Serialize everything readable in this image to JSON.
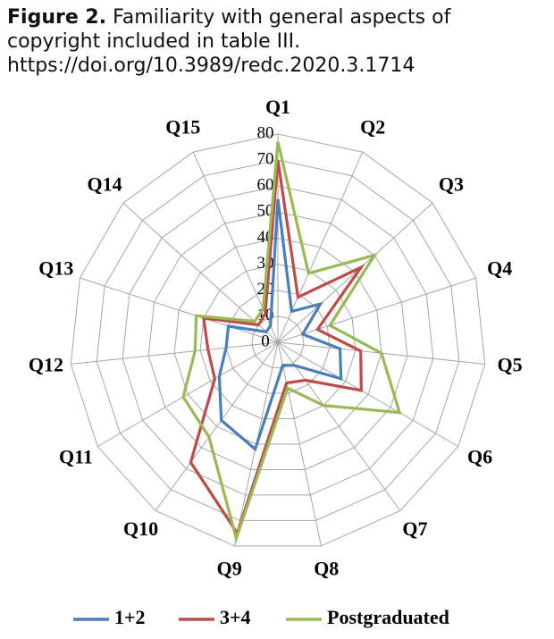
{
  "chart_data": {
    "type": "radar",
    "figure_label": "Figure 2.",
    "title": "Familiarity with general aspects of copyright included in table III.",
    "doi": "https://doi.org/10.3989/redc.2020.3.1714",
    "categories": [
      "Q1",
      "Q2",
      "Q3",
      "Q4",
      "Q5",
      "Q6",
      "Q7",
      "Q8",
      "Q9",
      "Q10",
      "Q11",
      "Q12",
      "Q13",
      "Q14",
      "Q15"
    ],
    "rlim": [
      0,
      80
    ],
    "rticks": [
      0,
      10,
      20,
      30,
      40,
      50,
      60,
      70,
      80
    ],
    "grid": true,
    "legend": "bottom",
    "series": [
      {
        "name": "1+2",
        "color": "#4a7ebb",
        "values": [
          55,
          13,
          22,
          10,
          24,
          28,
          11,
          9,
          42,
          37,
          26,
          20,
          20,
          6,
          7
        ]
      },
      {
        "name": "3+4",
        "color": "#be4b48",
        "values": [
          70,
          19,
          43,
          16,
          32,
          37,
          18,
          16,
          75,
          57,
          28,
          27,
          30,
          10,
          12
        ]
      },
      {
        "name": "Postgraduated",
        "color": "#98b954",
        "values": [
          77,
          29,
          50,
          21,
          40,
          54,
          30,
          18,
          77,
          45,
          42,
          32,
          33,
          12,
          14
        ]
      }
    ]
  }
}
